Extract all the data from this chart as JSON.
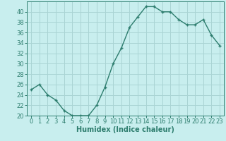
{
  "x": [
    0,
    1,
    2,
    3,
    4,
    5,
    6,
    7,
    8,
    9,
    10,
    11,
    12,
    13,
    14,
    15,
    16,
    17,
    18,
    19,
    20,
    21,
    22,
    23
  ],
  "y": [
    25,
    26,
    24,
    23,
    21,
    20,
    20,
    20,
    22,
    25.5,
    30,
    33,
    37,
    39,
    41,
    41,
    40,
    40,
    38.5,
    37.5,
    37.5,
    38.5,
    35.5,
    33.5
  ],
  "line_color": "#2d7d6e",
  "marker": "+",
  "bg_color": "#c8eeee",
  "grid_color": "#aad4d4",
  "xlabel": "Humidex (Indice chaleur)",
  "ylim": [
    20,
    42
  ],
  "xlim": [
    -0.5,
    23.5
  ],
  "yticks": [
    20,
    22,
    24,
    26,
    28,
    30,
    32,
    34,
    36,
    38,
    40
  ],
  "xticks": [
    0,
    1,
    2,
    3,
    4,
    5,
    6,
    7,
    8,
    9,
    10,
    11,
    12,
    13,
    14,
    15,
    16,
    17,
    18,
    19,
    20,
    21,
    22,
    23
  ],
  "xlabel_fontsize": 7,
  "tick_fontsize": 6,
  "line_width": 1.0,
  "marker_size": 3.5
}
